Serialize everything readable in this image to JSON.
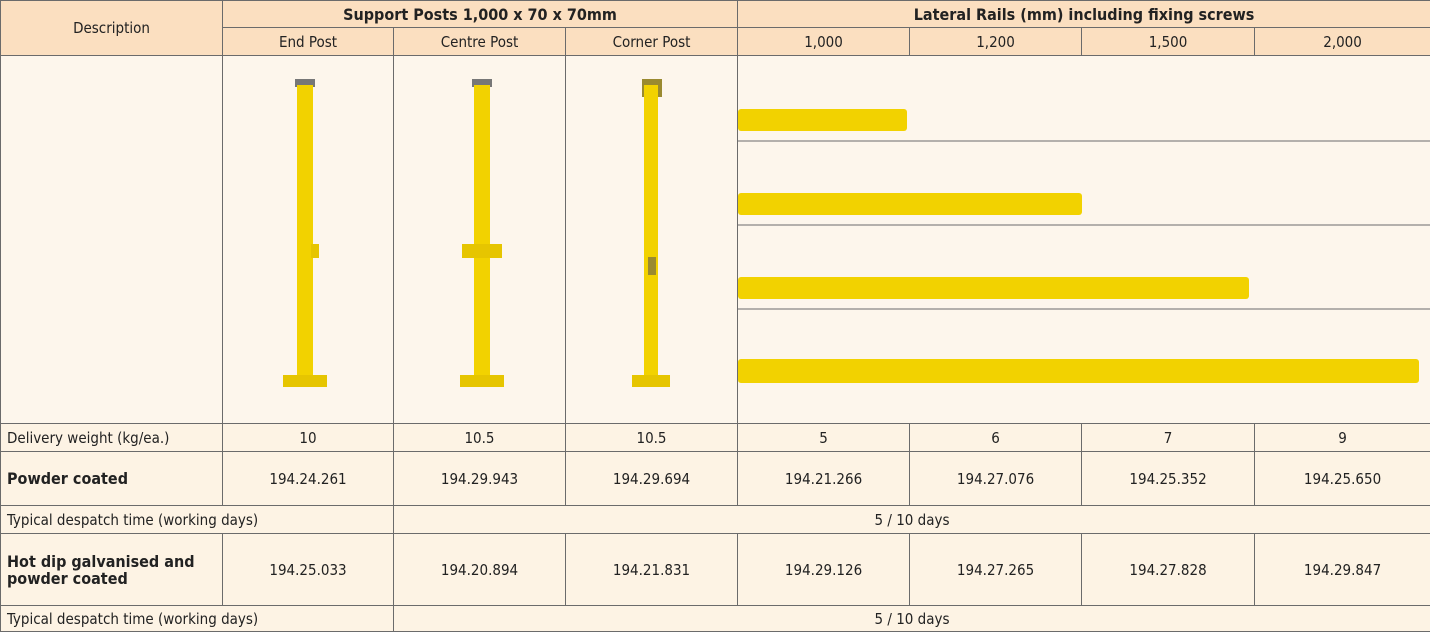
{
  "header": {
    "description": "Description",
    "support_posts": "Support Posts 1,000 x 70 x 70mm",
    "lateral_rails": "Lateral Rails (mm) including fixing screws",
    "columns": [
      "End Post",
      "Centre Post",
      "Corner Post",
      "1,000",
      "1,200",
      "1,500",
      "2,000"
    ]
  },
  "rows": [
    {
      "label": "Delivery weight (kg/ea.)",
      "cells": [
        "10",
        "10.5",
        "10.5",
        "5",
        "6",
        "7",
        "9"
      ]
    },
    {
      "label": "Powder coated",
      "cells": [
        "194.24.261",
        "194.29.943",
        "194.29.694",
        "194.21.266",
        "194.27.076",
        "194.25.352",
        "194.25.650"
      ]
    },
    {
      "label": "Typical despatch time (working days)",
      "value": "5 / 10 days"
    },
    {
      "label": "Hot dip galvanised and powder coated",
      "cells": [
        "194.25.033",
        "194.20.894",
        "194.21.831",
        "194.29.126",
        "194.27.265",
        "194.27.828",
        "194.29.847"
      ]
    },
    {
      "label": "Typical despatch time (working days)",
      "value": "5 / 10 days"
    }
  ]
}
